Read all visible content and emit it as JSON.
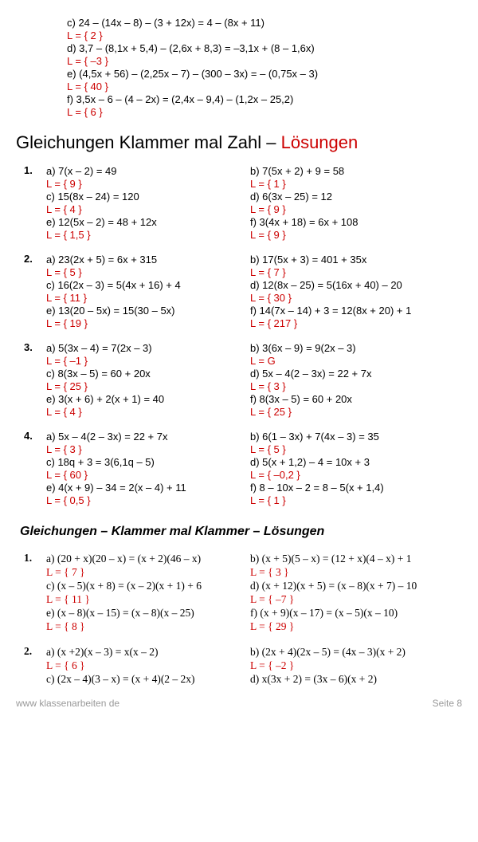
{
  "top": {
    "c_eq": "c) 24 – (14x – 8) – (3 + 12x) = 4 – (8x + 11)",
    "c_sol": "L = { 2 }",
    "d_eq": "d) 3,7 – (8,1x + 5,4) – (2,6x + 8,3) = –3,1x + (8 – 1,6x)",
    "d_sol": "L = { –3 }",
    "e_eq": "e) (4,5x + 56) – (2,25x – 7) – (300 – 3x) = – (0,75x – 3)",
    "e_sol": "L = { 40 }",
    "f_eq": "f) 3,5x – 6 – (4 – 2x) = (2,4x – 9,4) – (1,2x – 25,2)",
    "f_sol": "L = { 6 }"
  },
  "title1_a": "Gleichungen Klammer mal Zahl – ",
  "title1_b": "Lösungen",
  "groups": [
    {
      "num": "1.",
      "left": [
        {
          "eq": "a) 7(x – 2) = 49",
          "sol": "L = { 9 }"
        },
        {
          "eq": "c) 15(8x – 24) = 120",
          "sol": "L = { 4 }"
        },
        {
          "eq": "e) 12(5x – 2) = 48 + 12x",
          "sol": "L = { 1,5 }"
        }
      ],
      "right": [
        {
          "eq": "b) 7(5x + 2) + 9 = 58",
          "sol": "L = { 1 }"
        },
        {
          "eq": "d) 6(3x – 25) = 12",
          "sol": "L = { 9 }"
        },
        {
          "eq": "f)  3(4x + 18) = 6x + 108",
          "sol": "L = { 9 }"
        }
      ]
    },
    {
      "num": "2.",
      "left": [
        {
          "eq": "a) 23(2x + 5) = 6x + 315",
          "sol": "L = { 5 }"
        },
        {
          "eq": "c) 16(2x – 3) = 5(4x + 16) + 4",
          "sol": "L = { 11 }"
        },
        {
          "eq": "e) 13(20 – 5x) = 15(30 – 5x)",
          "sol": "L = { 19 }"
        }
      ],
      "right": [
        {
          "eq": "b) 17(5x + 3) = 401 + 35x",
          "sol": "L = { 7 }"
        },
        {
          "eq": "d) 12(8x – 25) = 5(16x + 40) – 20",
          "sol": "L = { 30 }"
        },
        {
          "eq": "f)  14(7x – 14) + 3 = 12(8x + 20) + 1",
          "sol": "L = { 217 }"
        }
      ]
    },
    {
      "num": "3.",
      "left": [
        {
          "eq": "a) 5(3x – 4) = 7(2x – 3)",
          "sol": "L = { –1 }"
        },
        {
          "eq": "c) 8(3x – 5) = 60 + 20x",
          "sol": "L = { 25 }"
        },
        {
          "eq": "e) 3(x + 6) + 2(x + 1) = 40",
          "sol": "L = { 4 }"
        }
      ],
      "right": [
        {
          "eq": "b) 3(6x – 9) = 9(2x – 3)",
          "sol": "L = G"
        },
        {
          "eq": "d) 5x – 4(2 – 3x) = 22 + 7x",
          "sol": "L = { 3 }"
        },
        {
          "eq": "f)  8(3x – 5) = 60 + 20x",
          "sol": "L = { 25 }"
        }
      ]
    },
    {
      "num": "4.",
      "left": [
        {
          "eq": "a) 5x – 4(2 – 3x) = 22 + 7x",
          "sol": "L = { 3 }"
        },
        {
          "eq": "c) 18q + 3 = 3(6,1q – 5)",
          "sol": "L = { 60 }"
        },
        {
          "eq": "e) 4(x + 9) – 34 = 2(x – 4) + 11",
          "sol": "L = { 0,5 }"
        }
      ],
      "right": [
        {
          "eq": "b) 6(1 – 3x) + 7(4x – 3) = 35",
          "sol": "L = { 5 }"
        },
        {
          "eq": "d) 5(x + 1,2) – 4 = 10x + 3",
          "sol": "L = { –0,2 }"
        },
        {
          "eq": "f)  8 – 10x – 2 = 8 – 5(x + 1,4)",
          "sol": "L = { 1 }"
        }
      ]
    }
  ],
  "title2": "Gleichungen – Klammer mal Klammer – Lösungen",
  "groups2": [
    {
      "num": "1.",
      "left": [
        {
          "eq": "a) (20 + x)(20 – x) = (x + 2)(46 – x)",
          "sol": "L = { 7 }"
        },
        {
          "eq": "c) (x – 5)(x + 8) = (x – 2)(x + 1) + 6",
          "sol": "L = { 11 }"
        },
        {
          "eq": "e) (x – 8)(x – 15) = (x – 8)(x – 25)",
          "sol": "L = { 8 }"
        }
      ],
      "right": [
        {
          "eq": "b) (x + 5)(5 – x) = (12 + x)(4 – x) + 1",
          "sol": "L = { 3 }"
        },
        {
          "eq": "d) (x + 12)(x + 5) = (x – 8)(x + 7) – 10",
          "sol": "L = { –7 }"
        },
        {
          "eq": "f)  (x + 9)(x – 17) = (x – 5)(x – 10)",
          "sol": "L = { 29 }"
        }
      ]
    },
    {
      "num": "2.",
      "left": [
        {
          "eq": "a) (x +2)(x – 3) = x(x – 2)",
          "sol": "L = { 6 }"
        },
        {
          "eq": "c) (2x – 4)(3 – x) = (x + 4)(2 – 2x)",
          "sol": ""
        }
      ],
      "right": [
        {
          "eq": "b) (2x + 4)(2x – 5) = (4x – 3)(x + 2)",
          "sol": "L = { –2 }"
        },
        {
          "eq": "d) x(3x + 2) = (3x – 6)(x + 2)",
          "sol": ""
        }
      ]
    }
  ],
  "footer_left": "www klassenarbeiten de",
  "footer_right": "Seite 8"
}
